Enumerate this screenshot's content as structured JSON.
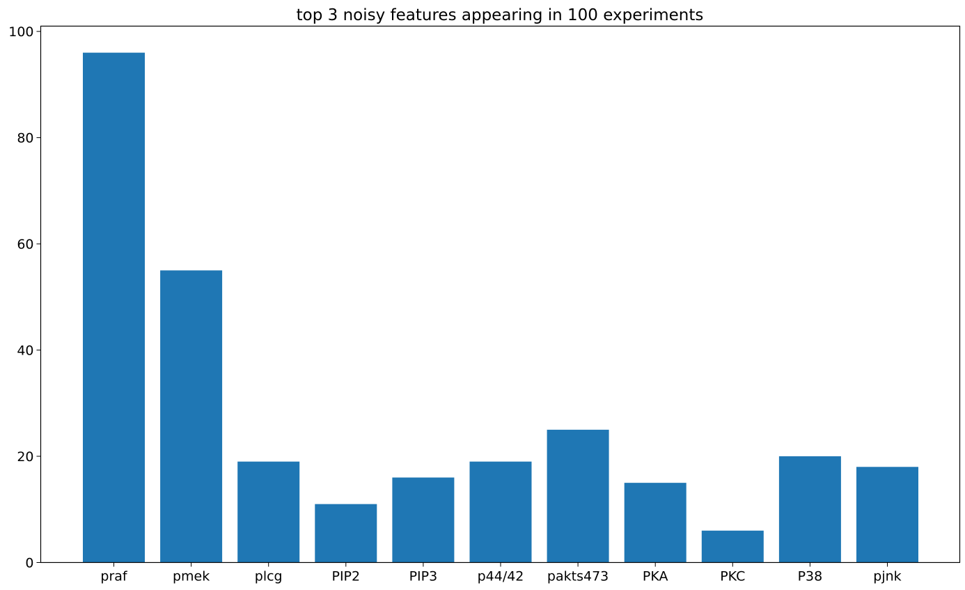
{
  "chart_data": {
    "type": "bar",
    "title": "top 3 noisy features appearing in 100 experiments",
    "xlabel": "",
    "ylabel": "",
    "categories": [
      "praf",
      "pmek",
      "plcg",
      "PIP2",
      "PIP3",
      "p44/42",
      "pakts473",
      "PKA",
      "PKC",
      "P38",
      "pjnk"
    ],
    "values": [
      96,
      55,
      19,
      11,
      16,
      19,
      25,
      15,
      6,
      20,
      18
    ],
    "ylim": [
      0,
      101
    ],
    "yticks": [
      0,
      20,
      40,
      60,
      80,
      100
    ],
    "bar_color": "#1f77b4",
    "grid": false,
    "legend": "none"
  }
}
